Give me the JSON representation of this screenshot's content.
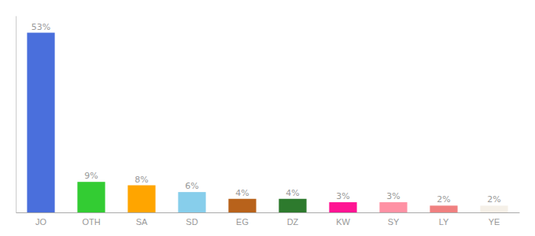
{
  "chart_data": {
    "type": "bar",
    "categories": [
      "JO",
      "OTH",
      "SA",
      "SD",
      "EG",
      "DZ",
      "KW",
      "SY",
      "LY",
      "YE"
    ],
    "values": [
      53,
      9,
      8,
      6,
      4,
      4,
      3,
      3,
      2,
      2
    ],
    "value_labels": [
      "53%",
      "9%",
      "8%",
      "6%",
      "4%",
      "4%",
      "3%",
      "3%",
      "2%",
      "2%"
    ],
    "colors": [
      "#4a6fdc",
      "#33cc33",
      "#ffa500",
      "#87ceeb",
      "#b8621b",
      "#2d7a2d",
      "#ff1493",
      "#ff91a4",
      "#f08080",
      "#f5f0e8"
    ],
    "ylim": [
      0,
      58
    ],
    "grid": false,
    "data_labels": true,
    "tick_labels": "x"
  }
}
